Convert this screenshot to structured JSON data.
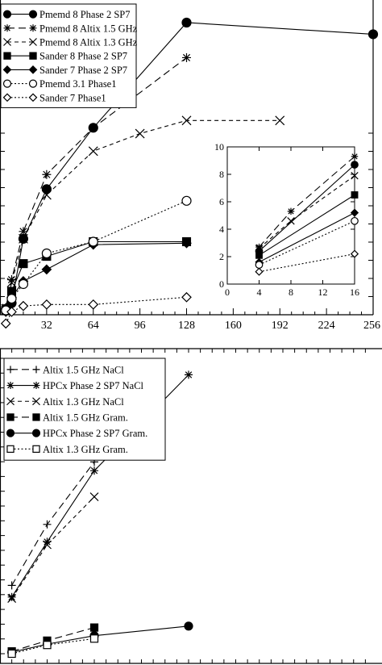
{
  "chart_data": [
    {
      "type": "line",
      "xlim": [
        0,
        256
      ],
      "ylim": [
        0,
        10
      ],
      "x_ticks": [
        "32",
        "64",
        "96",
        "128",
        "160",
        "192",
        "224",
        "256"
      ],
      "x_tick_values": [
        32,
        64,
        96,
        128,
        160,
        192,
        224,
        256
      ],
      "grid": false,
      "legend_position": "top-left",
      "series": [
        {
          "name": "Pmemd 8 Phase 2 SP7",
          "marker": "filled-circle",
          "dash": "solid",
          "x": [
            4,
            8,
            16,
            32,
            64,
            128,
            256
          ],
          "y": [
            0.2,
            0.4,
            2.6,
            4.3,
            6.4,
            10.0,
            9.6
          ]
        },
        {
          "name": "Pmemd 8 Altix 1.5 GHz",
          "marker": "asterisk",
          "dash": "long-dash",
          "x": [
            4,
            8,
            16,
            32,
            64,
            128
          ],
          "y": [
            0.25,
            1.2,
            2.85,
            4.8,
            6.4,
            8.8
          ]
        },
        {
          "name": "Pmemd 8 Altix 1.3 GHz",
          "marker": "cross",
          "dash": "short-dash",
          "x": [
            4,
            8,
            16,
            32,
            64,
            96,
            128,
            192
          ],
          "y": [
            0.2,
            1.1,
            2.6,
            4.1,
            5.6,
            6.2,
            6.65,
            6.65
          ]
        },
        {
          "name": "Sander 8 Phase 2 SP7",
          "marker": "filled-square",
          "dash": "solid",
          "x": [
            4,
            8,
            16,
            32,
            64,
            128
          ],
          "y": [
            0.15,
            0.8,
            1.75,
            2.0,
            2.5,
            2.5
          ]
        },
        {
          "name": "Sander 7 Phase 2 SP7",
          "marker": "filled-diamond",
          "dash": "solid",
          "x": [
            4,
            8,
            16,
            32,
            64,
            128
          ],
          "y": [
            0.1,
            0.6,
            1.15,
            1.55,
            2.4,
            2.45
          ]
        },
        {
          "name": "Pmemd 3.1 Phase1",
          "marker": "open-circle",
          "dash": "dotted",
          "x": [
            4,
            8,
            16,
            32,
            64,
            128
          ],
          "y": [
            0.15,
            0.55,
            1.05,
            2.1,
            2.5,
            3.9
          ]
        },
        {
          "name": "Sander 7 Phase1",
          "marker": "open-diamond",
          "dash": "dotted",
          "x": [
            4,
            8,
            16,
            32,
            64,
            128
          ],
          "y": [
            -0.3,
            0.1,
            0.3,
            0.35,
            0.35,
            0.6
          ]
        }
      ],
      "inset": {
        "type": "line",
        "xlim": [
          0,
          16
        ],
        "ylim": [
          0,
          10
        ],
        "x_ticks": [
          "0",
          "4",
          "8",
          "12",
          "16"
        ],
        "x_tick_values": [
          0,
          4,
          8,
          12,
          16
        ],
        "y_ticks": [
          "0",
          "2",
          "4",
          "6",
          "8",
          "10"
        ],
        "y_tick_values": [
          0,
          2,
          4,
          6,
          8,
          10
        ],
        "series": [
          {
            "name": "Pmemd 8 Phase 2 SP7",
            "marker": "filled-circle",
            "dash": "solid",
            "x": [
              4,
              16
            ],
            "y": [
              2.4,
              8.7
            ]
          },
          {
            "name": "Pmemd 8 Altix 1.5 GHz",
            "marker": "asterisk",
            "dash": "long-dash",
            "x": [
              4,
              8,
              16
            ],
            "y": [
              2.7,
              5.3,
              9.3
            ]
          },
          {
            "name": "Pmemd 8 Altix 1.3 GHz",
            "marker": "cross",
            "dash": "short-dash",
            "x": [
              4,
              8,
              16
            ],
            "y": [
              2.6,
              4.6,
              7.9
            ]
          },
          {
            "name": "Sander 8 Phase 2 SP7",
            "marker": "filled-square",
            "dash": "solid",
            "x": [
              4,
              16
            ],
            "y": [
              2.1,
              6.5
            ]
          },
          {
            "name": "Sander 7 Phase 2 SP7",
            "marker": "filled-diamond",
            "dash": "solid",
            "x": [
              4,
              16
            ],
            "y": [
              1.6,
              5.2
            ]
          },
          {
            "name": "Pmemd 3.1 Phase1",
            "marker": "open-circle",
            "dash": "dotted",
            "x": [
              4,
              16
            ],
            "y": [
              1.4,
              4.6
            ]
          },
          {
            "name": "Sander 7 Phase1",
            "marker": "open-diamond",
            "dash": "dotted",
            "x": [
              4,
              16
            ],
            "y": [
              0.9,
              2.2
            ]
          }
        ]
      }
    },
    {
      "type": "line",
      "xlim": [
        0,
        256
      ],
      "ylim": [
        0,
        10
      ],
      "grid": false,
      "legend_position": "top-left",
      "series": [
        {
          "name": "Altix 1.5 GHz NaCl",
          "marker": "plus",
          "dash": "long-dash",
          "x": [
            8,
            32,
            64
          ],
          "y": [
            2.35,
            4.45,
            6.6
          ]
        },
        {
          "name": "HPCx Phase 2 SP7 NaCl",
          "marker": "asterisk",
          "dash": "solid",
          "x": [
            8,
            32,
            64,
            128
          ],
          "y": [
            1.95,
            3.85,
            6.3,
            9.6
          ]
        },
        {
          "name": "Altix 1.3 GHz NaCl",
          "marker": "cross",
          "dash": "short-dash",
          "x": [
            8,
            32,
            64
          ],
          "y": [
            1.9,
            3.75,
            5.4
          ]
        },
        {
          "name": "Altix 1.5 GHz Gram.",
          "marker": "filled-square",
          "dash": "long-dash",
          "x": [
            8,
            32,
            64
          ],
          "y": [
            0.08,
            0.45,
            0.9
          ]
        },
        {
          "name": "HPCx Phase 2 SP7 Gram.",
          "marker": "filled-circle",
          "dash": "solid",
          "x": [
            8,
            32,
            64,
            128
          ],
          "y": [
            0.05,
            0.33,
            0.62,
            0.95
          ]
        },
        {
          "name": "Altix 1.3 GHz Gram.",
          "marker": "open-square",
          "dash": "dotted",
          "x": [
            8,
            32,
            64
          ],
          "y": [
            0.0,
            0.3,
            0.52
          ]
        }
      ]
    }
  ]
}
